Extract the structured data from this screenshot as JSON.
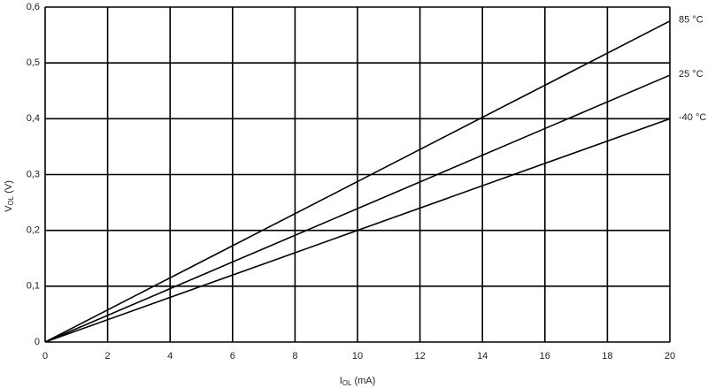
{
  "chart_data": {
    "type": "line",
    "xlabel": {
      "main": "I",
      "sub": "OL",
      "unit": " (mA)"
    },
    "ylabel": {
      "main": "V",
      "sub": "OL",
      "unit": " (V)"
    },
    "x": [
      0,
      20
    ],
    "series": [
      {
        "name": "85 °C",
        "color": "#000000",
        "values": [
          0,
          0.575
        ]
      },
      {
        "name": "25 °C",
        "color": "#000000",
        "values": [
          0,
          0.478
        ]
      },
      {
        "name": "-40 °C",
        "color": "#000000",
        "values": [
          0,
          0.4
        ]
      }
    ],
    "xlim": [
      0,
      20
    ],
    "xticks": [
      0,
      2,
      4,
      6,
      8,
      10,
      12,
      14,
      16,
      18,
      20
    ],
    "ylim": [
      0,
      0.6
    ],
    "yticks": [
      0,
      {
        "value": 0.1,
        "label": "0,1"
      },
      {
        "value": 0.2,
        "label": "0,2"
      },
      {
        "value": 0.3,
        "label": "0,3"
      },
      {
        "value": 0.4,
        "label": "0,4"
      },
      {
        "value": 0.5,
        "label": "0,5"
      },
      {
        "value": 0.6,
        "label": "0,6"
      }
    ],
    "grid": true
  }
}
